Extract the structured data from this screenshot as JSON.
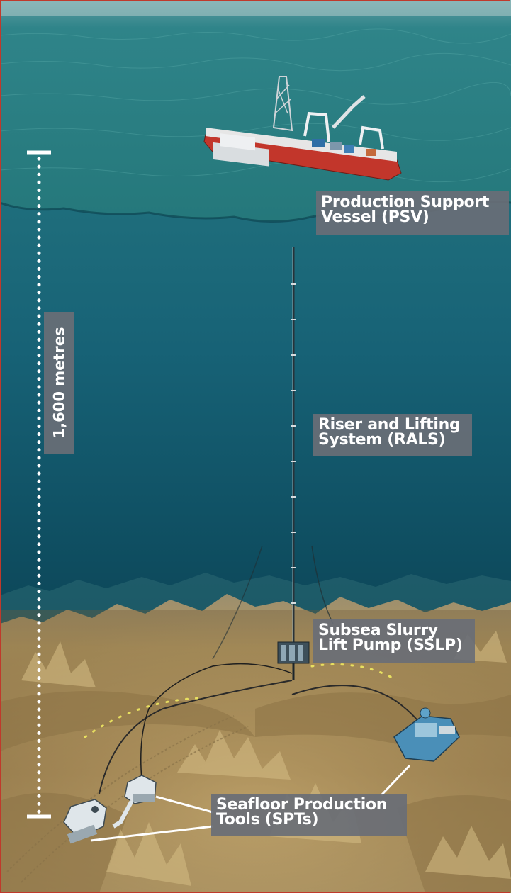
{
  "labels": {
    "psv": {
      "line1": "Production Support",
      "line2": "Vessel (PSV)"
    },
    "rals": {
      "line1": "Riser and Lifting",
      "line2": "System (RALS)"
    },
    "sslp": {
      "line1": "Subsea Slurry",
      "line2": "Lift Pump (SSLP)"
    },
    "spt": {
      "line1": "Seafloor Production",
      "line2": "Tools (SPTs)"
    }
  },
  "depth": {
    "label": "1,600 metres"
  },
  "colors": {
    "sea_surface": "#2e8a8e",
    "deep_water": "#0d4f63",
    "seafloor": "#b59a62",
    "vessel_hull": "#c2362b",
    "label_box": "#696e76",
    "cable_dots": "#e8e060"
  },
  "icons": [
    "ship-icon",
    "riser-pipe-icon",
    "pump-icon",
    "crawler-vehicle-icon",
    "cutter-vehicle-icon",
    "collector-vehicle-icon"
  ]
}
